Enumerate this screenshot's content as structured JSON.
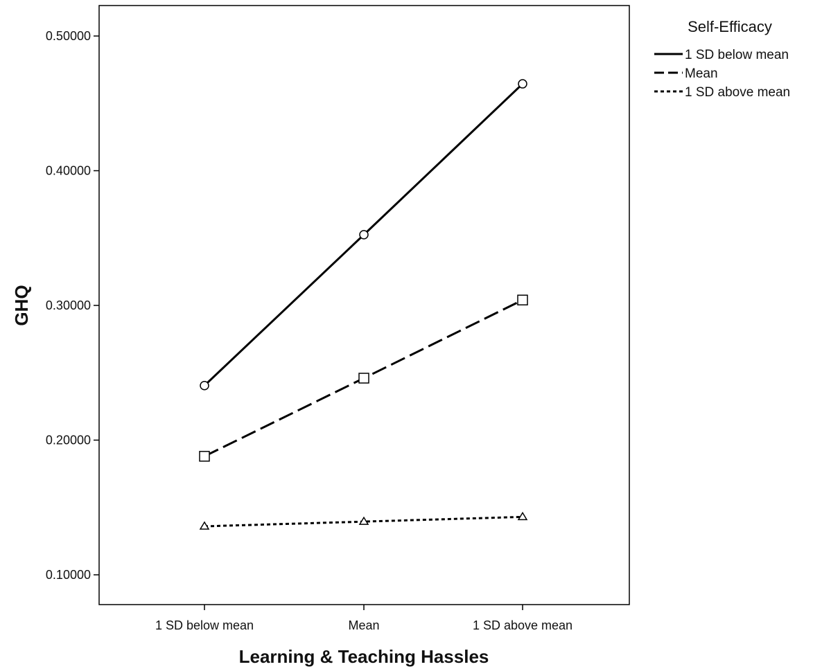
{
  "chart_data": {
    "type": "line",
    "xlabel": "Learning & Teaching Hassles",
    "ylabel": "GHQ",
    "categories": [
      "1 SD below mean",
      "Mean",
      "1 SD above mean"
    ],
    "ylim": [
      0.08,
      0.51
    ],
    "yticks": [
      0.1,
      0.2,
      0.3,
      0.4,
      0.5
    ],
    "ytick_labels": [
      "0.10000",
      "0.20000",
      "0.30000",
      "0.40000",
      "0.50000"
    ],
    "grid": false,
    "legend": {
      "title": "Self-Efficacy",
      "position": "right"
    },
    "series": [
      {
        "name": "1 SD below mean",
        "values": [
          0.2405,
          0.3525,
          0.4645
        ],
        "line": "solid",
        "marker": "circle"
      },
      {
        "name": "Mean",
        "values": [
          0.188,
          0.246,
          0.304
        ],
        "line": "dashed",
        "marker": "square"
      },
      {
        "name": "1 SD above mean",
        "values": [
          0.136,
          0.1395,
          0.143
        ],
        "line": "dotted",
        "marker": "triangle"
      }
    ]
  }
}
